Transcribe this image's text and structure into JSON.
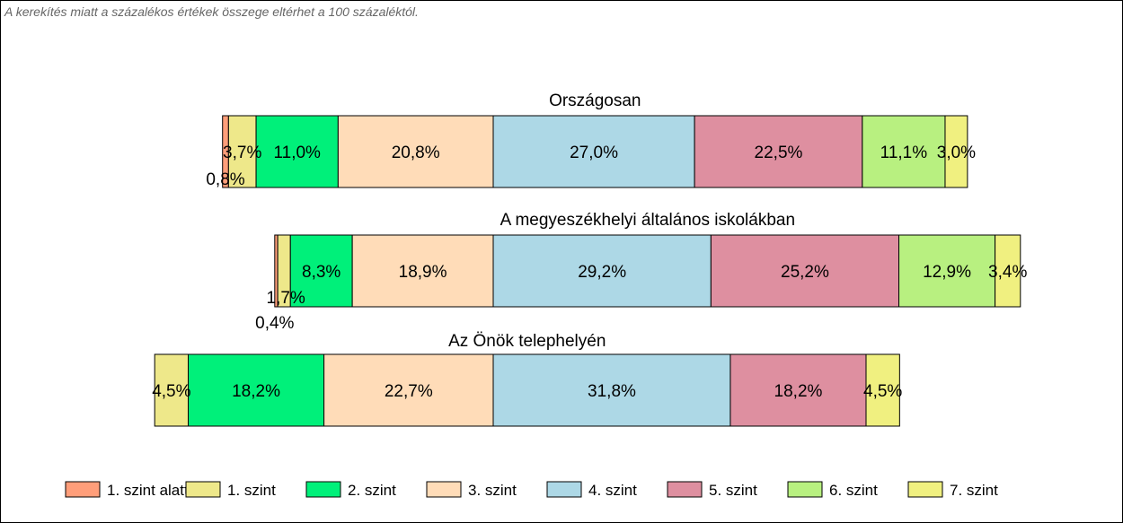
{
  "note": "A kerekítés miatt a  százalékos értékek összege eltérhet a 100 százaléktól.",
  "colors": {
    "level_below_1": "#FF9E7A",
    "level_1": "#EEE88A",
    "level_2": "#00F07A",
    "level_3": "#FFDCB8",
    "level_4": "#ADD8E6",
    "level_5": "#DE8FA0",
    "level_6": "#B8F080",
    "level_7": "#F0F080"
  },
  "chart_data": {
    "type": "bar",
    "orientation": "horizontal-stacked",
    "series_keys": [
      "level_below_1",
      "level_1",
      "level_2",
      "level_3",
      "level_4",
      "level_5",
      "level_6",
      "level_7"
    ],
    "legend": {
      "placement": "bottom",
      "items": [
        {
          "key": "level_below_1",
          "label": "1. szint alatti"
        },
        {
          "key": "level_1",
          "label": "1. szint"
        },
        {
          "key": "level_2",
          "label": "2. szint"
        },
        {
          "key": "level_3",
          "label": "3. szint"
        },
        {
          "key": "level_4",
          "label": "4. szint"
        },
        {
          "key": "level_5",
          "label": "5. szint"
        },
        {
          "key": "level_6",
          "label": "6. szint"
        },
        {
          "key": "level_7",
          "label": "7. szint"
        }
      ]
    },
    "groups": [
      {
        "title": "Országosan",
        "values": [
          0.8,
          3.7,
          11.0,
          20.8,
          27.0,
          22.5,
          11.1,
          3.0
        ],
        "labels": [
          "0,8%",
          "3,7%",
          "11,0%",
          "20,8%",
          "27,0%",
          "22,5%",
          "11,1%",
          "3,0%"
        ]
      },
      {
        "title": "A megyeszékhelyi általános iskolákban",
        "values": [
          0.4,
          1.7,
          8.3,
          18.9,
          29.2,
          25.2,
          12.9,
          3.4
        ],
        "labels": [
          "0,4%",
          "1,7%",
          "8,3%",
          "18,9%",
          "29,2%",
          "25,2%",
          "12,9%",
          "3,4%"
        ]
      },
      {
        "title": "Az Önök telephelyén",
        "values": [
          0,
          4.5,
          18.2,
          22.7,
          31.8,
          18.2,
          0,
          4.5
        ],
        "labels": [
          "",
          "4,5%",
          "18,2%",
          "22,7%",
          "31,8%",
          "18,2%",
          "",
          "4,5%"
        ]
      }
    ]
  }
}
